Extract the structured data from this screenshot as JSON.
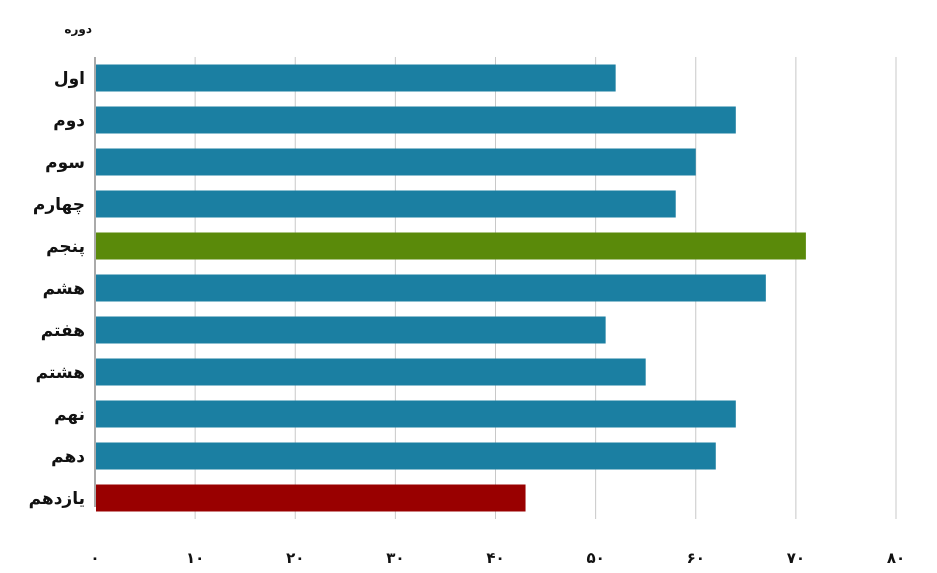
{
  "chart_data": {
    "type": "bar",
    "orientation": "horizontal",
    "title": "",
    "ylabel": "دوره",
    "xlabel": "",
    "categories": [
      "اول",
      "دوم",
      "سوم",
      "چهارم",
      "پنجم",
      "هشم",
      "هفتم",
      "هشتم",
      "نهم",
      "دهم",
      "یازدهم"
    ],
    "values": [
      52,
      64,
      60,
      58,
      71,
      67,
      51,
      55,
      64,
      62,
      43
    ],
    "bar_colors": [
      "#1b7fa2",
      "#1b7fa2",
      "#1b7fa2",
      "#1b7fa2",
      "#5a8a0a",
      "#1b7fa2",
      "#1b7fa2",
      "#1b7fa2",
      "#1b7fa2",
      "#1b7fa2",
      "#990000"
    ],
    "xlim": [
      0,
      80
    ],
    "xticks": [
      0,
      10,
      20,
      30,
      40,
      50,
      60,
      70,
      80
    ],
    "xtick_labels": [
      "۰",
      "۱۰",
      "۲۰",
      "۳۰",
      "۴۰",
      "۵۰",
      "۶۰",
      "۷۰",
      "۸۰"
    ],
    "grid": true,
    "gridline_color": "#c8c8c8",
    "legend": "none"
  }
}
